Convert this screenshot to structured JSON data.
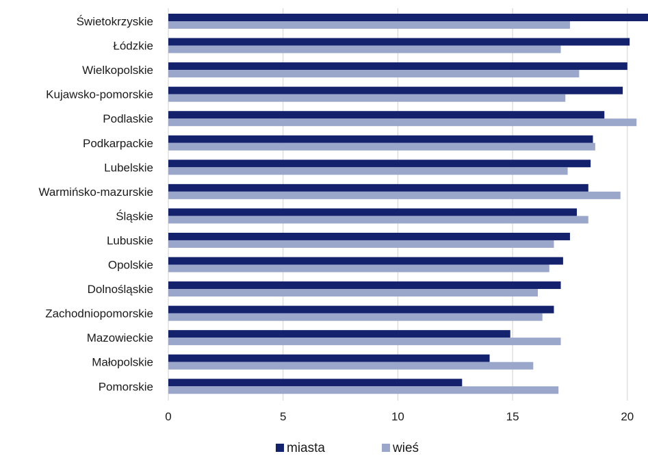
{
  "chart_data": {
    "type": "bar",
    "orientation": "horizontal",
    "categories": [
      "Świetokrzyskie",
      "Łódzkie",
      "Wielkopolskie",
      "Kujawsko-pomorskie",
      "Podlaskie",
      "Podkarpackie",
      "Lubelskie",
      "Warmińsko-mazurskie",
      "Śląskie",
      "Lubuskie",
      "Opolskie",
      "Dolnośląskie",
      "Zachodniopomorskie",
      "Mazowieckie",
      "Małopolskie",
      "Pomorskie"
    ],
    "series": [
      {
        "name": "miasta",
        "color": "#14226e",
        "values": [
          20.9,
          20.1,
          20.0,
          19.8,
          19.0,
          18.5,
          18.4,
          18.3,
          17.8,
          17.5,
          17.2,
          17.1,
          16.8,
          14.9,
          14.0,
          12.8
        ]
      },
      {
        "name": "wieś",
        "color": "#9ba6cb",
        "values": [
          17.5,
          17.1,
          17.9,
          17.3,
          20.4,
          18.6,
          17.4,
          19.7,
          18.3,
          16.8,
          16.6,
          16.1,
          16.3,
          17.1,
          15.9,
          17.0
        ]
      }
    ],
    "xlim": [
      0,
      20.9
    ],
    "xticks": [
      0,
      5,
      10,
      15,
      20
    ],
    "xtick_labels": [
      "0",
      "5",
      "10",
      "15",
      "20"
    ],
    "grid": true,
    "legend_position": "bottom"
  }
}
